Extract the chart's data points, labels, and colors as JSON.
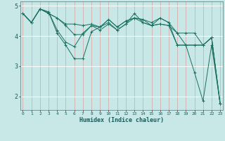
{
  "xlabel": "Humidex (Indice chaleur)",
  "xlim": [
    -0.3,
    23.3
  ],
  "ylim": [
    1.55,
    5.15
  ],
  "yticks": [
    2,
    3,
    4,
    5
  ],
  "xticks": [
    0,
    1,
    2,
    3,
    4,
    5,
    6,
    7,
    8,
    9,
    10,
    11,
    12,
    13,
    14,
    15,
    16,
    17,
    18,
    19,
    20,
    21,
    22,
    23
  ],
  "bg_color": "#c8e8e8",
  "line_color": "#1a7060",
  "grid_color_h": "#ffffff",
  "grid_color_v": "#d8a0a0",
  "lines": [
    [
      4.75,
      4.45,
      4.9,
      4.8,
      4.1,
      3.7,
      3.25,
      3.25,
      4.15,
      4.3,
      4.55,
      4.3,
      4.5,
      4.6,
      4.55,
      4.35,
      4.6,
      4.45,
      3.7,
      3.7,
      3.7,
      3.7,
      3.95,
      1.75
    ],
    [
      4.75,
      4.45,
      4.9,
      4.8,
      4.2,
      3.8,
      3.65,
      4.1,
      4.35,
      4.3,
      4.55,
      4.3,
      4.5,
      4.6,
      4.55,
      4.45,
      4.6,
      4.45,
      4.1,
      3.7,
      2.8,
      1.85,
      3.7,
      1.75
    ],
    [
      4.75,
      4.45,
      4.9,
      4.75,
      4.6,
      4.35,
      4.05,
      4.05,
      4.35,
      4.2,
      4.4,
      4.2,
      4.4,
      4.75,
      4.45,
      4.35,
      4.4,
      4.35,
      3.7,
      3.7,
      3.7,
      3.7,
      3.95,
      1.75
    ],
    [
      4.75,
      4.45,
      4.9,
      4.75,
      4.6,
      4.4,
      4.4,
      4.35,
      4.4,
      4.3,
      4.45,
      4.2,
      4.4,
      4.6,
      4.45,
      4.35,
      4.4,
      4.35,
      4.1,
      4.1,
      4.1,
      3.7,
      3.95,
      1.75
    ]
  ]
}
